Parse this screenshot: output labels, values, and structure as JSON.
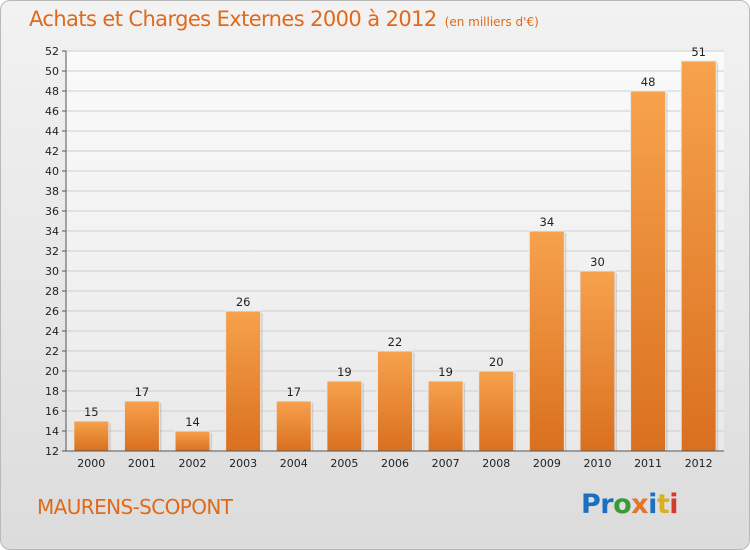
{
  "header": {
    "title": "Achats et Charges Externes 2000 à 2012",
    "subtitle": "(en milliers d'€)"
  },
  "footer": {
    "city": "MAURENS-SCOPONT",
    "logo": [
      "Pr",
      "o",
      "x",
      "i",
      "t",
      "i"
    ]
  },
  "colors": {
    "bar_light": "#f7a24d",
    "bar_dark": "#d9701f",
    "accent": "#e06a1a"
  },
  "chart_data": {
    "type": "bar",
    "title": "Achats et Charges Externes 2000 à 2012",
    "subtitle": "(en milliers d'€)",
    "categories": [
      "2000",
      "2001",
      "2002",
      "2003",
      "2004",
      "2005",
      "2006",
      "2007",
      "2008",
      "2009",
      "2010",
      "2011",
      "2012"
    ],
    "values": [
      15,
      17,
      14,
      26,
      17,
      19,
      22,
      19,
      20,
      34,
      30,
      48,
      51
    ],
    "ylim": [
      12,
      52
    ],
    "yticks": [
      12,
      14,
      16,
      18,
      20,
      22,
      24,
      26,
      28,
      30,
      32,
      34,
      36,
      38,
      40,
      42,
      44,
      46,
      48,
      50,
      52
    ],
    "grid": true,
    "data_labels": true
  }
}
